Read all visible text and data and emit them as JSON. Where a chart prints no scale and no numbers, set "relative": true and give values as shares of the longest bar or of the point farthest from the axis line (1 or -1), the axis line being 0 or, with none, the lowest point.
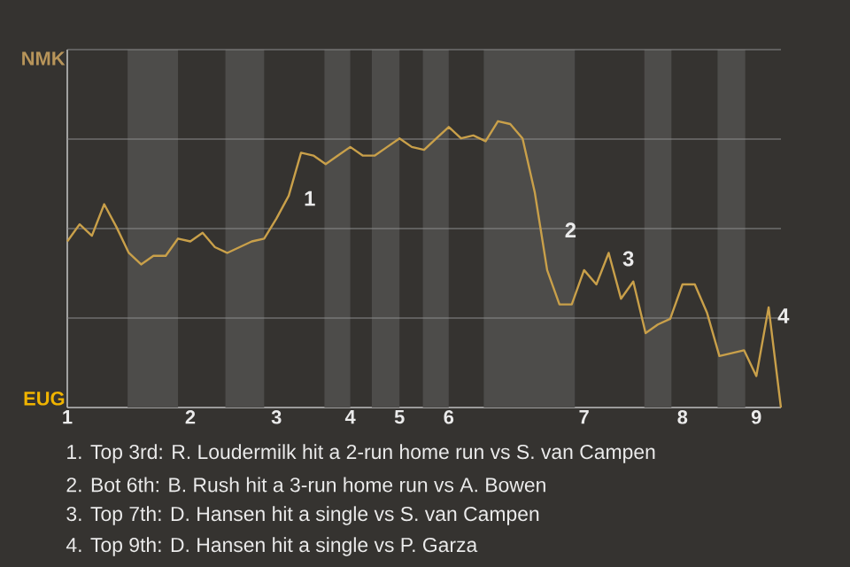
{
  "chart_data": {
    "type": "line",
    "relative": true,
    "categories": [
      "1",
      null,
      null,
      null,
      null,
      null,
      null,
      null,
      null,
      null,
      "2",
      null,
      null,
      null,
      null,
      null,
      null,
      "3",
      null,
      null,
      null,
      null,
      null,
      "4",
      null,
      null,
      null,
      "5",
      null,
      null,
      null,
      "6",
      null,
      null,
      null,
      null,
      null,
      null,
      null,
      null,
      null,
      null,
      "7",
      null,
      null,
      null,
      null,
      null,
      null,
      null,
      "8",
      null,
      null,
      null,
      null,
      null,
      "9",
      null,
      null
    ],
    "series": [
      {
        "color": "#c9a04a",
        "values": [
          0.58,
          0.64,
          0.6,
          0.71,
          0.63,
          0.54,
          0.5,
          0.53,
          0.53,
          0.59,
          0.58,
          0.61,
          0.56,
          0.54,
          0.56,
          0.58,
          0.59,
          0.66,
          0.74,
          0.89,
          0.88,
          0.85,
          0.88,
          0.91,
          0.88,
          0.88,
          0.91,
          0.94,
          0.91,
          0.9,
          0.94,
          0.98,
          0.94,
          0.95,
          0.93,
          1,
          0.99,
          0.94,
          0.75,
          0.48,
          0.36,
          0.36,
          0.48,
          0.43,
          0.54,
          0.38,
          0.44,
          0.26,
          0.29,
          0.31,
          0.43,
          0.43,
          0.33,
          0.18,
          0.19,
          0.2,
          0.11,
          0.35,
          0
        ]
      }
    ],
    "grid": "y",
    "annotations": [
      "NMK",
      "EUG",
      "1",
      "2",
      "3",
      "4",
      "1. Top 3rd: R. Loudermilk hit a 2-run home run vs S. van Campen",
      "2. Bot 6th: B. Rush hit a 3-run home run vs A. Bowen",
      "3. Top 7th: D. Hansen hit a single vs S. van Campen",
      "4. Top 9th: D. Hansen hit a single vs P. Garza"
    ]
  }
}
